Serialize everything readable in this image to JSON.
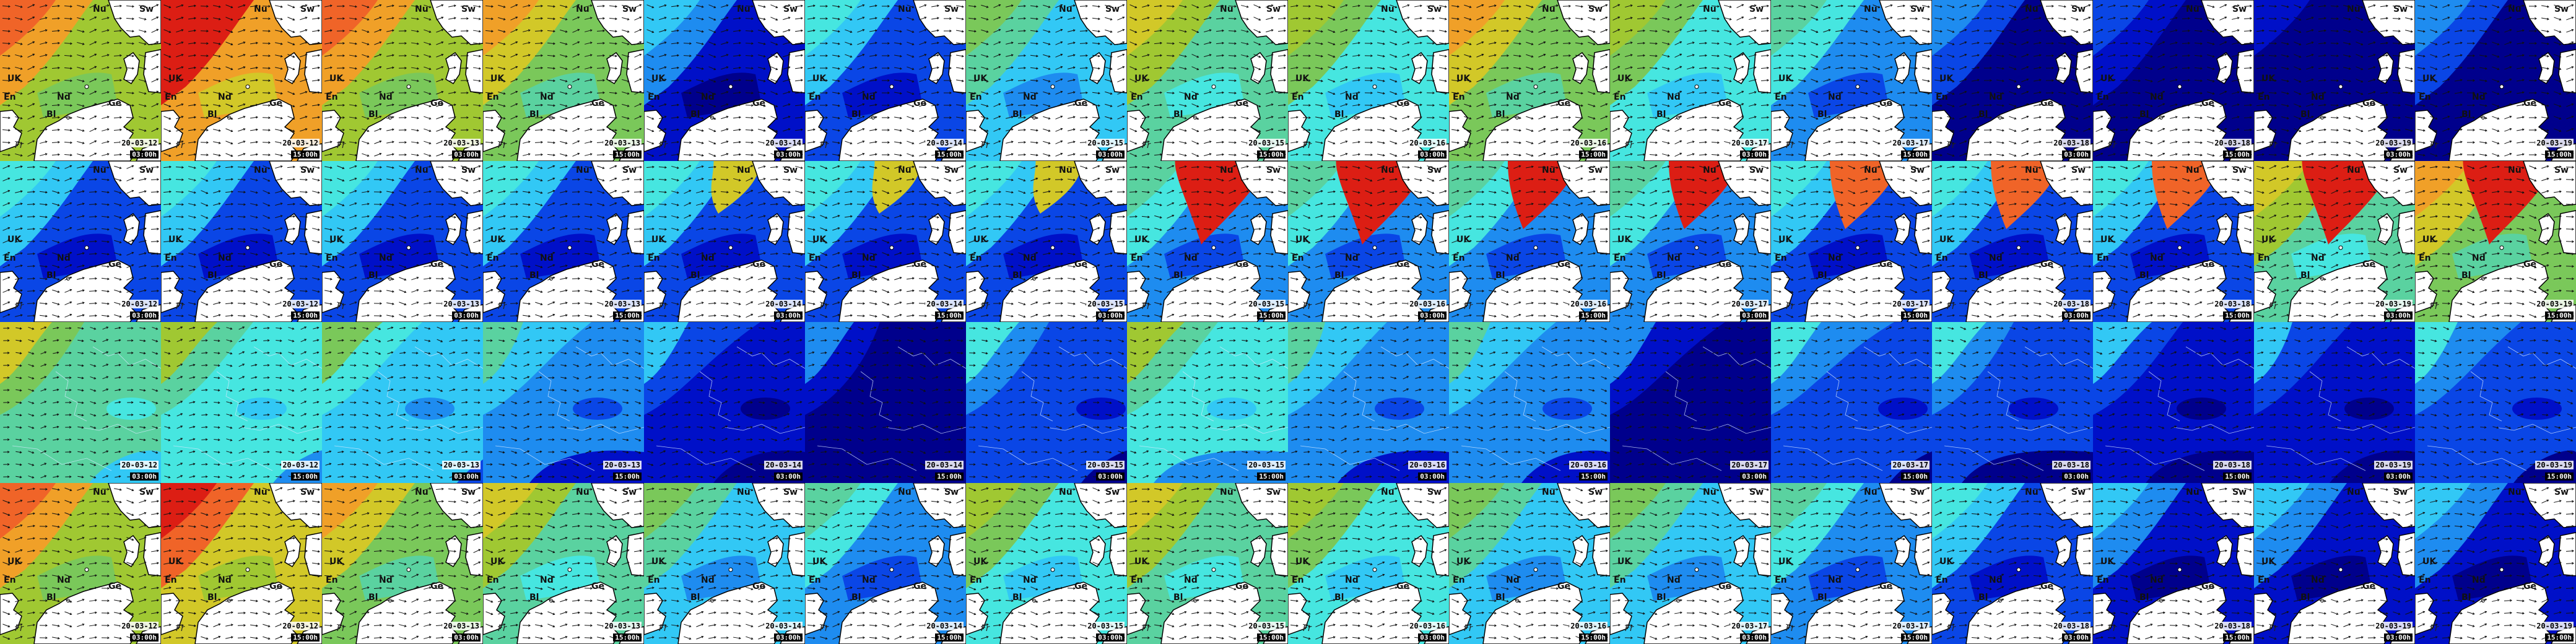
{
  "colors": {
    "scale": [
      "#00008c",
      "#0010c8",
      "#0a46e6",
      "#1e8cf0",
      "#32c8f5",
      "#46e6e0",
      "#5ad2a0",
      "#7ac85a",
      "#a0c832",
      "#d2c828",
      "#f0a028",
      "#f06428",
      "#dc1e14"
    ],
    "land": "#ffffff",
    "coast": "#000000",
    "arrow": "#111111"
  },
  "labels": {
    "nu": "Nu",
    "sw": "Sw",
    "ge": "Ge",
    "uk": "UK",
    "nd": "Nd",
    "bl": "Bl",
    "en": "En",
    "fr": "Fr"
  },
  "rows": [
    {
      "name": "row-1",
      "type": "north",
      "levels": [
        10,
        12,
        10,
        9,
        3,
        4,
        6,
        8,
        7,
        9,
        7,
        5,
        2,
        1,
        0,
        2
      ]
    },
    {
      "name": "row-2",
      "type": "north",
      "levels": [
        4,
        4,
        4,
        4,
        4,
        4,
        4,
        5,
        5,
        5,
        5,
        4,
        4,
        4,
        8,
        9
      ],
      "hot": [
        0,
        0,
        0,
        0,
        1,
        1,
        1,
        3,
        3,
        2,
        2,
        2,
        2,
        2,
        3,
        3
      ]
    },
    {
      "name": "row-3",
      "type": "wide",
      "levels": [
        7,
        6,
        5,
        4,
        2,
        1,
        3,
        6,
        4,
        4,
        1,
        3,
        3,
        2,
        2,
        3
      ]
    },
    {
      "name": "row-4",
      "type": "north",
      "levels": [
        10,
        11,
        9,
        8,
        6,
        5,
        7,
        8,
        7,
        6,
        6,
        5,
        4,
        3,
        3,
        3
      ]
    }
  ],
  "stamps": [
    [
      "20-03-12",
      "03:00h"
    ],
    [
      "20-03-12",
      "15:00h"
    ],
    [
      "20-03-13",
      "03:00h"
    ],
    [
      "20-03-13",
      "15:00h"
    ],
    [
      "20-03-14",
      "03:00h"
    ],
    [
      "20-03-14",
      "15:00h"
    ],
    [
      "20-03-15",
      "03:00h"
    ],
    [
      "20-03-15",
      "15:00h"
    ],
    [
      "20-03-16",
      "03:00h"
    ],
    [
      "20-03-16",
      "15:00h"
    ],
    [
      "20-03-17",
      "03:00h"
    ],
    [
      "20-03-17",
      "15:00h"
    ],
    [
      "20-03-18",
      "03:00h"
    ],
    [
      "20-03-18",
      "15:00h"
    ],
    [
      "20-03-19",
      "03:00h"
    ],
    [
      "20-03-19",
      "15:00h"
    ]
  ]
}
